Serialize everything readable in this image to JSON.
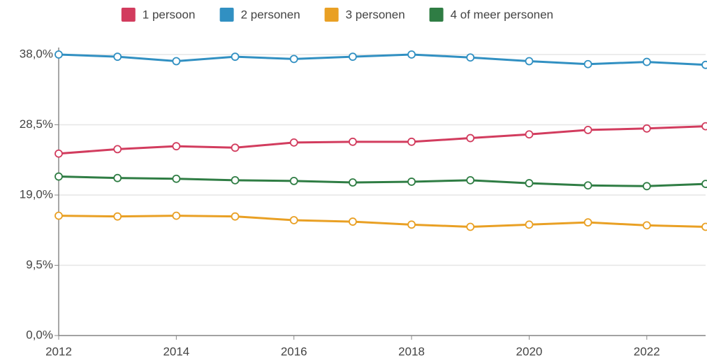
{
  "chart_data": {
    "type": "line",
    "x": [
      2012,
      2013,
      2014,
      2015,
      2016,
      2017,
      2018,
      2019,
      2020,
      2021,
      2022,
      2023
    ],
    "series": [
      {
        "name": "1 persoon",
        "color": "#d23c5e",
        "values": [
          24.6,
          25.2,
          25.6,
          25.4,
          26.1,
          26.2,
          26.2,
          26.7,
          27.2,
          27.8,
          28.0,
          28.3
        ]
      },
      {
        "name": "2 personen",
        "color": "#3190c2",
        "values": [
          38.0,
          37.7,
          37.1,
          37.7,
          37.4,
          37.7,
          38.0,
          37.6,
          37.1,
          36.7,
          37.0,
          36.6
        ]
      },
      {
        "name": "3 personen",
        "color": "#e9a024",
        "values": [
          16.2,
          16.1,
          16.2,
          16.1,
          15.6,
          15.4,
          15.0,
          14.7,
          15.0,
          15.3,
          14.9,
          14.7
        ]
      },
      {
        "name": "4 of meer personen",
        "color": "#2f7d44",
        "values": [
          21.5,
          21.3,
          21.2,
          21.0,
          20.9,
          20.7,
          20.8,
          21.0,
          20.6,
          20.3,
          20.2,
          20.5
        ]
      }
    ],
    "xlim": [
      2012,
      2023
    ],
    "xticks": [
      2012,
      2014,
      2016,
      2018,
      2020,
      2022
    ],
    "ylim": [
      0,
      38
    ],
    "yticks": [
      {
        "value": 0,
        "label": "0,0%"
      },
      {
        "value": 9.5,
        "label": "9,5%"
      },
      {
        "value": 19,
        "label": "19,0%"
      },
      {
        "value": 28.5,
        "label": "28,5%"
      },
      {
        "value": 38,
        "label": "38,0%"
      }
    ],
    "grid": true,
    "legend": "top"
  }
}
